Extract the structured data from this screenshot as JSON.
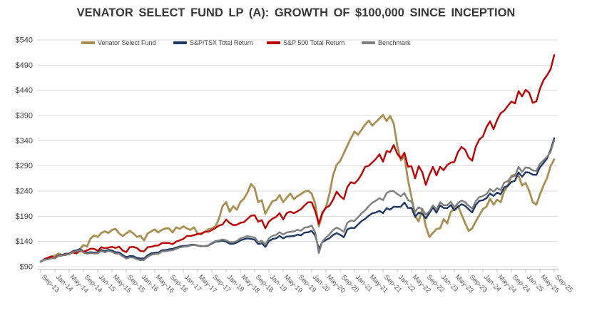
{
  "title": "VENATOR SELECT FUND LP (A):  GROWTH OF $100,000 SINCE INCEPTION",
  "chart_data": {
    "type": "line",
    "title": "VENATOR SELECT FUND LP (A):  GROWTH OF $100,000 SINCE INCEPTION",
    "x_unit": "monthly, Sep-2013 through Sep-2025",
    "x_tick_labels": [
      "Sep-13",
      "Jan-14",
      "May-14",
      "Sep-14",
      "Jan-15",
      "May-15",
      "Sep-15",
      "Jan-16",
      "May-16",
      "Sep-16",
      "Jan-17",
      "May-17",
      "Sep-17",
      "Jan-18",
      "May-18",
      "Sep-18",
      "Jan-19",
      "May-19",
      "Sep-19",
      "Jan-20",
      "May-20",
      "Sep-20",
      "Jan-21",
      "May-21",
      "Sep-21",
      "Jan-22",
      "May-22",
      "Sep-22",
      "Jan-23",
      "May-23",
      "Sep-23",
      "Jan-24",
      "May-24",
      "Sep-24",
      "Jan-25",
      "May-25",
      "Sep-25"
    ],
    "x_tick_interval_months": 4,
    "y_ticks": [
      540,
      490,
      440,
      390,
      340,
      290,
      240,
      190,
      140,
      90
    ],
    "y_tick_prefix": "$",
    "ylim": [
      90,
      540
    ],
    "grid": "horizontal",
    "legend_position": "top",
    "series": [
      {
        "name": "Venator Select Fund",
        "color": "#A98F50",
        "width": 2.8,
        "values": [
          100,
          103,
          106,
          110,
          112,
          116,
          113,
          114,
          116,
          119,
          116,
          125,
          133,
          130,
          146,
          152,
          149,
          157,
          160,
          157,
          163,
          165,
          156,
          151,
          156,
          161,
          156,
          149,
          151,
          142,
          156,
          160,
          164,
          158,
          163,
          166,
          166,
          158,
          168,
          165,
          170,
          166,
          163,
          168,
          156,
          154,
          159,
          164,
          166,
          170,
          185,
          210,
          218,
          199,
          210,
          203,
          218,
          225,
          237,
          254,
          246,
          218,
          222,
          195,
          208,
          220,
          222,
          232,
          218,
          227,
          235,
          224,
          230,
          234,
          239,
          241,
          235,
          215,
          170,
          195,
          208,
          235,
          272,
          292,
          300,
          315,
          330,
          345,
          358,
          352,
          362,
          372,
          380,
          370,
          377,
          384,
          391,
          379,
          389,
          374,
          330,
          301,
          309,
          262,
          228,
          190,
          180,
          205,
          170,
          149,
          157,
          165,
          166,
          184,
          176,
          199,
          204,
          211,
          194,
          177,
          161,
          166,
          180,
          192,
          204,
          209,
          225,
          213,
          223,
          218,
          240,
          251,
          270,
          273,
          270,
          251,
          256,
          240,
          218,
          213,
          233,
          251,
          266,
          290,
          303
        ]
      },
      {
        "name": "S&P/TSX Total Return",
        "color": "#1F3864",
        "width": 2.4,
        "values": [
          100,
          104.7,
          105.1,
          107.2,
          108,
          112.1,
          113.4,
          115.9,
          115.8,
          120.7,
          122.4,
          125,
          119.9,
          117.4,
          118.8,
          117.9,
          118.4,
          123.2,
          120.6,
          123.5,
          122.1,
          118.7,
          118.1,
          113.4,
          109,
          111.1,
          110.8,
          107.4,
          106.1,
          106.6,
          112.3,
          116.4,
          117.6,
          118,
          122.6,
          123,
          124.5,
          125.2,
          128,
          130.1,
          131.2,
          131.4,
          133.1,
          133.7,
          132,
          130.9,
          130.8,
          131.7,
          135.8,
          139.4,
          140.1,
          141.8,
          139.8,
          135.6,
          135.4,
          137.8,
          142.1,
          144.5,
          146.2,
          145,
          143.7,
          134.7,
          136.6,
          129.2,
          140.4,
          144.8,
          146.2,
          150.9,
          146.2,
          149.9,
          150.3,
          150.9,
          153.5,
          152.1,
          157.6,
          158.4,
          161.1,
          151.6,
          125.2,
          138.7,
          142.9,
          146.4,
          153,
          156.5,
          153.2,
          148.5,
          164.2,
          167,
          166.5,
          173.8,
          180.6,
          184.9,
          191.2,
          196,
          197.6,
          200.8,
          196.4,
          206.2,
          202.9,
          209.2,
          208.4,
          209,
          217.4,
          206.5,
          206.7,
          188.7,
          197.6,
          194.4,
          186,
          196.4,
          207.2,
          197.1,
          211.7,
          206.6,
          206.2,
          212.2,
          201.8,
          208.6,
          214,
          211,
          204.1,
          197.5,
          212.3,
          220.6,
          221.9,
          225.9,
          235.2,
          230.5,
          237,
          233.7,
          247.5,
          250.5,
          258.2,
          260.5,
          277.2,
          268.3,
          277.7,
          276.6,
          272.4,
          272.1,
          287.3,
          295.6,
          305,
          322,
          345
        ]
      },
      {
        "name": "S&P 500 Total Return",
        "color": "#C00000",
        "width": 2.4,
        "values": [
          100,
          104.6,
          107.8,
          110.5,
          106.6,
          111.5,
          112.4,
          113.2,
          115.8,
          118.2,
          116.6,
          121.2,
          119.5,
          122.4,
          125.7,
          125.4,
          121.6,
          128.6,
          126.5,
          127.8,
          129.4,
          126.9,
          129.6,
          121.8,
          118.8,
          128.8,
          129.2,
          127.1,
          120.8,
          120.6,
          128.8,
          129.3,
          131.6,
          132,
          136.9,
          137.1,
          137.1,
          134.6,
          139.6,
          142.4,
          145.1,
          150.9,
          151.1,
          152.6,
          154.8,
          155.7,
          159,
          159.5,
          162.8,
          166.6,
          171.7,
          173.6,
          183.5,
          176.7,
          172.3,
          173,
          177.2,
          178.3,
          184.9,
          191,
          192.1,
          179,
          182.6,
          166.2,
          179.5,
          185.2,
          188.7,
          196.3,
          183.7,
          196.6,
          199.3,
          196.1,
          199.8,
          204.2,
          211.6,
          217.9,
          217.8,
          199.9,
          175.1,
          197.5,
          207,
          211.1,
          223,
          239,
          229.9,
          223.8,
          248.2,
          257.7,
          255.1,
          262.2,
          273.7,
          288.2,
          290.2,
          296.9,
          304,
          313.2,
          298.5,
          319.4,
          317.2,
          331.4,
          314.2,
          304.8,
          316.1,
          288.6,
          289.2,
          265.2,
          289.6,
          277.7,
          252.2,
          272.6,
          287.9,
          271.2,
          288.3,
          281.4,
          291.8,
          296.4,
          297.7,
          317.3,
          327.5,
          322.3,
          306.8,
          300.4,
          327.7,
          342.5,
          348.3,
          366.8,
          378.5,
          363,
          381.1,
          394.8,
          399.6,
          409.2,
          417.8,
          414,
          438.4,
          427.9,
          441,
          435,
          415,
          418,
          443,
          460,
          470,
          482,
          510
        ]
      },
      {
        "name": "Benchmark",
        "color": "#7F7F7F",
        "width": 2.4,
        "values": [
          100,
          104,
          104.5,
          106.5,
          107,
          111,
          112,
          114.5,
          114.5,
          119,
          120.5,
          123,
          118,
          115.5,
          117,
          116,
          116.5,
          121,
          118.5,
          121,
          119.5,
          116,
          115.5,
          110.5,
          106,
          108.5,
          108,
          104.5,
          103,
          103.5,
          109.5,
          113.5,
          115,
          115.5,
          120,
          120.5,
          122,
          122.5,
          125.5,
          128,
          129.5,
          130,
          132,
          133,
          131.5,
          130.5,
          131,
          132.5,
          137,
          141,
          142,
          144,
          142.5,
          138.5,
          138.5,
          141,
          146,
          148.5,
          150.5,
          149.5,
          148,
          139,
          141.5,
          134,
          146,
          151,
          153,
          158.5,
          153.5,
          158,
          159,
          160,
          163,
          161.5,
          167.5,
          168.5,
          171.5,
          158,
          117,
          140,
          148,
          154,
          163,
          167.5,
          164,
          159,
          177,
          181.5,
          180.5,
          188,
          196,
          202,
          210,
          217,
          221,
          226,
          222,
          236,
          240,
          240,
          234,
          230,
          236,
          222,
          219,
          199,
          208,
          204,
          193,
          200,
          212,
          203,
          218,
          212,
          212,
          219,
          208,
          216,
          221,
          218,
          211,
          205,
          220,
          228,
          230,
          234,
          244,
          239,
          246,
          242,
          257,
          260,
          268,
          270,
          288,
          278,
          287,
          286,
          281,
          280,
          294,
          301,
          308,
          318,
          341
        ]
      }
    ]
  }
}
